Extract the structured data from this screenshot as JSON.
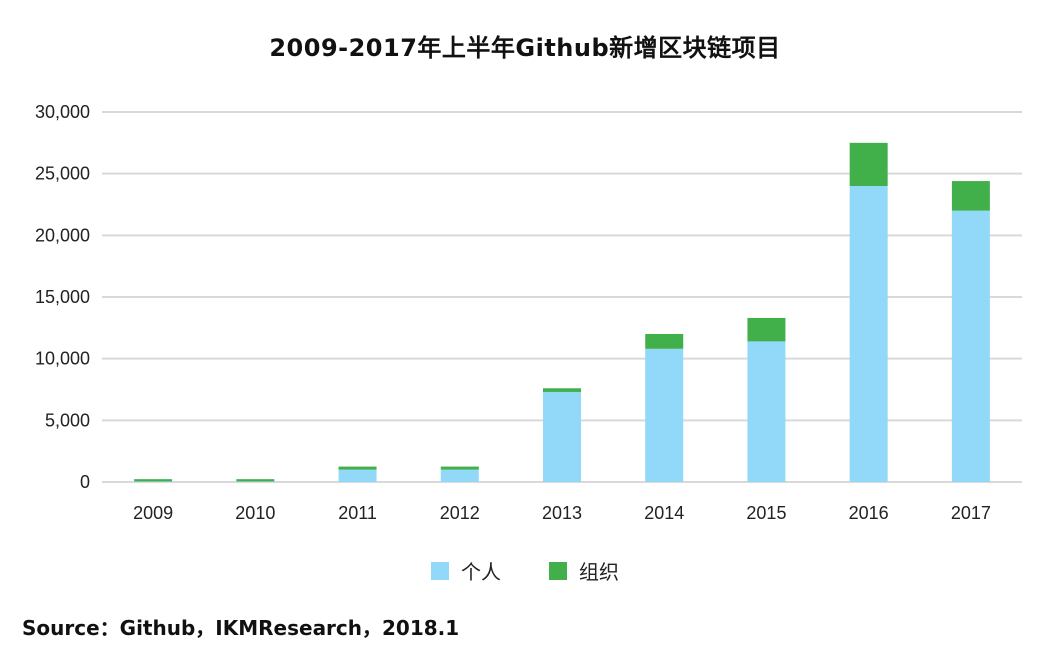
{
  "chart_data": {
    "type": "bar",
    "stacked": true,
    "title": "2009-2017年上半年Github新增区块链项目",
    "categories": [
      "2009",
      "2010",
      "2011",
      "2012",
      "2013",
      "2014",
      "2015",
      "2016",
      "2017"
    ],
    "series": [
      {
        "name": "个人",
        "color": "#92d8f8",
        "values": [
          50,
          50,
          1000,
          1000,
          7300,
          10800,
          11400,
          24000,
          22000
        ]
      },
      {
        "name": "组织",
        "color": "#41b04b",
        "values": [
          180,
          180,
          250,
          250,
          300,
          1200,
          1900,
          3500,
          2400
        ]
      }
    ],
    "ylim": [
      0,
      30000
    ],
    "yticks": [
      0,
      5000,
      10000,
      15000,
      20000,
      25000,
      30000
    ],
    "ytick_labels": [
      "0",
      "5,000",
      "10,000",
      "15,000",
      "20,000",
      "25,000",
      "30,000"
    ],
    "xlabel": "",
    "ylabel": "",
    "grid": true,
    "legend_position": "bottom"
  },
  "source": "Source：Github，IKMResearch，2018.1"
}
